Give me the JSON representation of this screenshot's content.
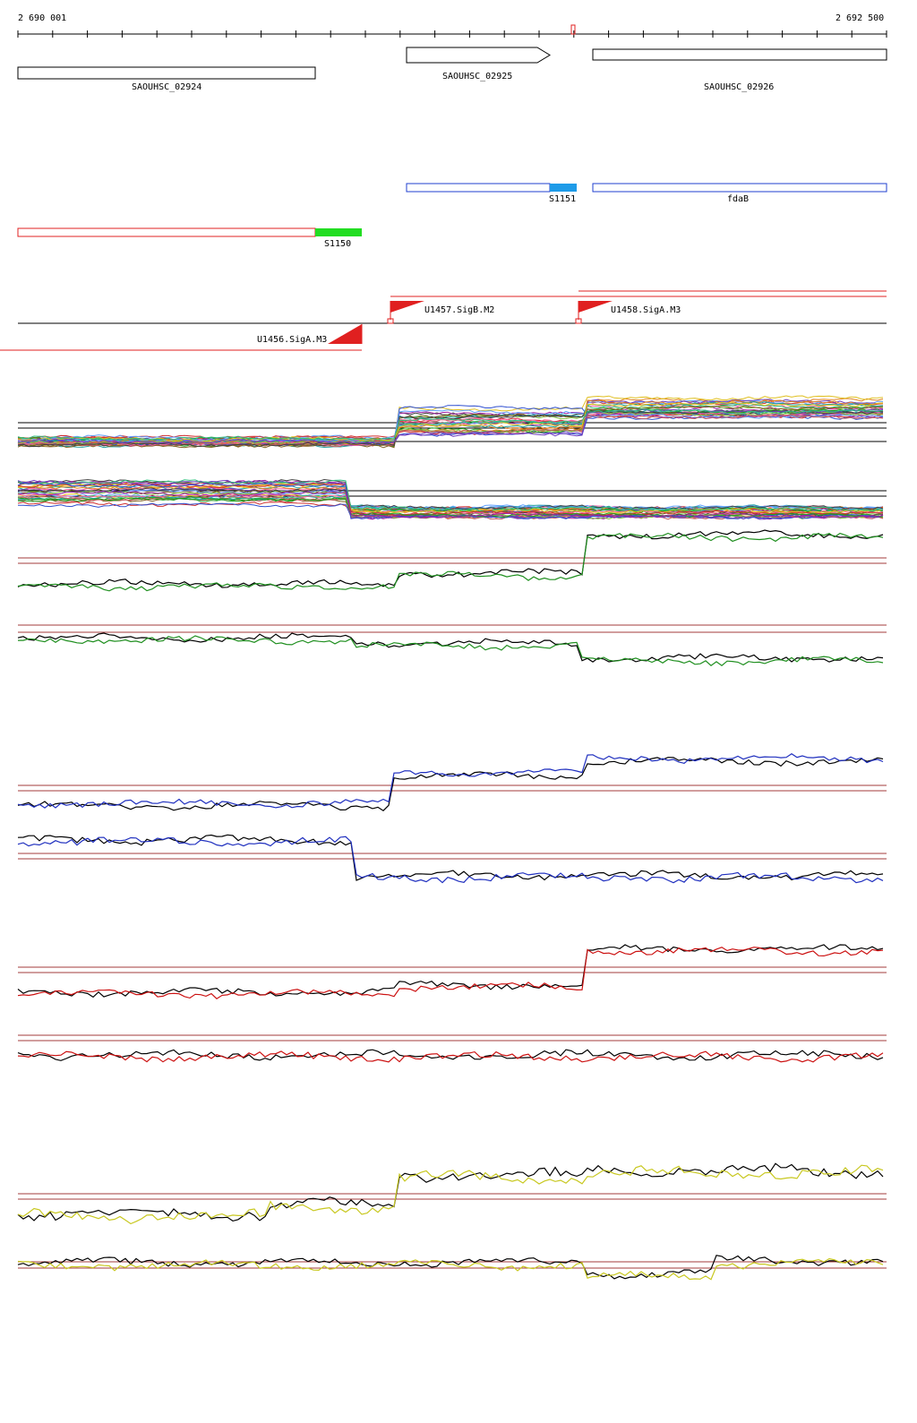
{
  "ruler": {
    "start_label": "2 690 001",
    "end_label": "2 692 500"
  },
  "genes": [
    {
      "id": "SAOUHSC_02924",
      "label": "SAOUHSC_02924"
    },
    {
      "id": "SAOUHSC_02925",
      "label": "SAOUHSC_02925"
    },
    {
      "id": "SAOUHSC_02926",
      "label": "SAOUHSC_02926"
    }
  ],
  "transcripts": [
    {
      "id": "S1151",
      "label": "S1151",
      "highlight_color": "#1e9be8",
      "outline_color": "#1f3fcf"
    },
    {
      "id": "fdaB",
      "label": "fdaB",
      "outline_color": "#1f3fcf"
    },
    {
      "id": "S1150",
      "label": "S1150",
      "highlight_color": "#22dd22",
      "outline_color": "#e02020"
    }
  ],
  "promoters": [
    {
      "id": "U1457",
      "label": "U1457.SigB.M2",
      "strand": "+"
    },
    {
      "id": "U1458",
      "label": "U1458.SigA.M3",
      "strand": "+"
    },
    {
      "id": "U1456",
      "label": "U1456.SigA.M3",
      "strand": "-"
    }
  ],
  "colors": {
    "feature_red": "#e02020",
    "threshold": "#a33b3b",
    "axis": "#000000"
  },
  "tracks": [
    {
      "id": "multi-forward",
      "color": "multi"
    },
    {
      "id": "multi-reverse",
      "color": "multi"
    },
    {
      "id": "green-forward",
      "color": "#1f8f1f"
    },
    {
      "id": "green-reverse",
      "color": "#1f8f1f"
    },
    {
      "id": "blue-forward",
      "color": "#1f2fbf"
    },
    {
      "id": "blue-reverse",
      "color": "#1f2fbf"
    },
    {
      "id": "red-forward",
      "color": "#cc1111"
    },
    {
      "id": "red-reverse",
      "color": "#cc1111"
    },
    {
      "id": "yellow-forward",
      "color": "#c8c820"
    },
    {
      "id": "yellow-reverse",
      "color": "#c8c820"
    }
  ]
}
